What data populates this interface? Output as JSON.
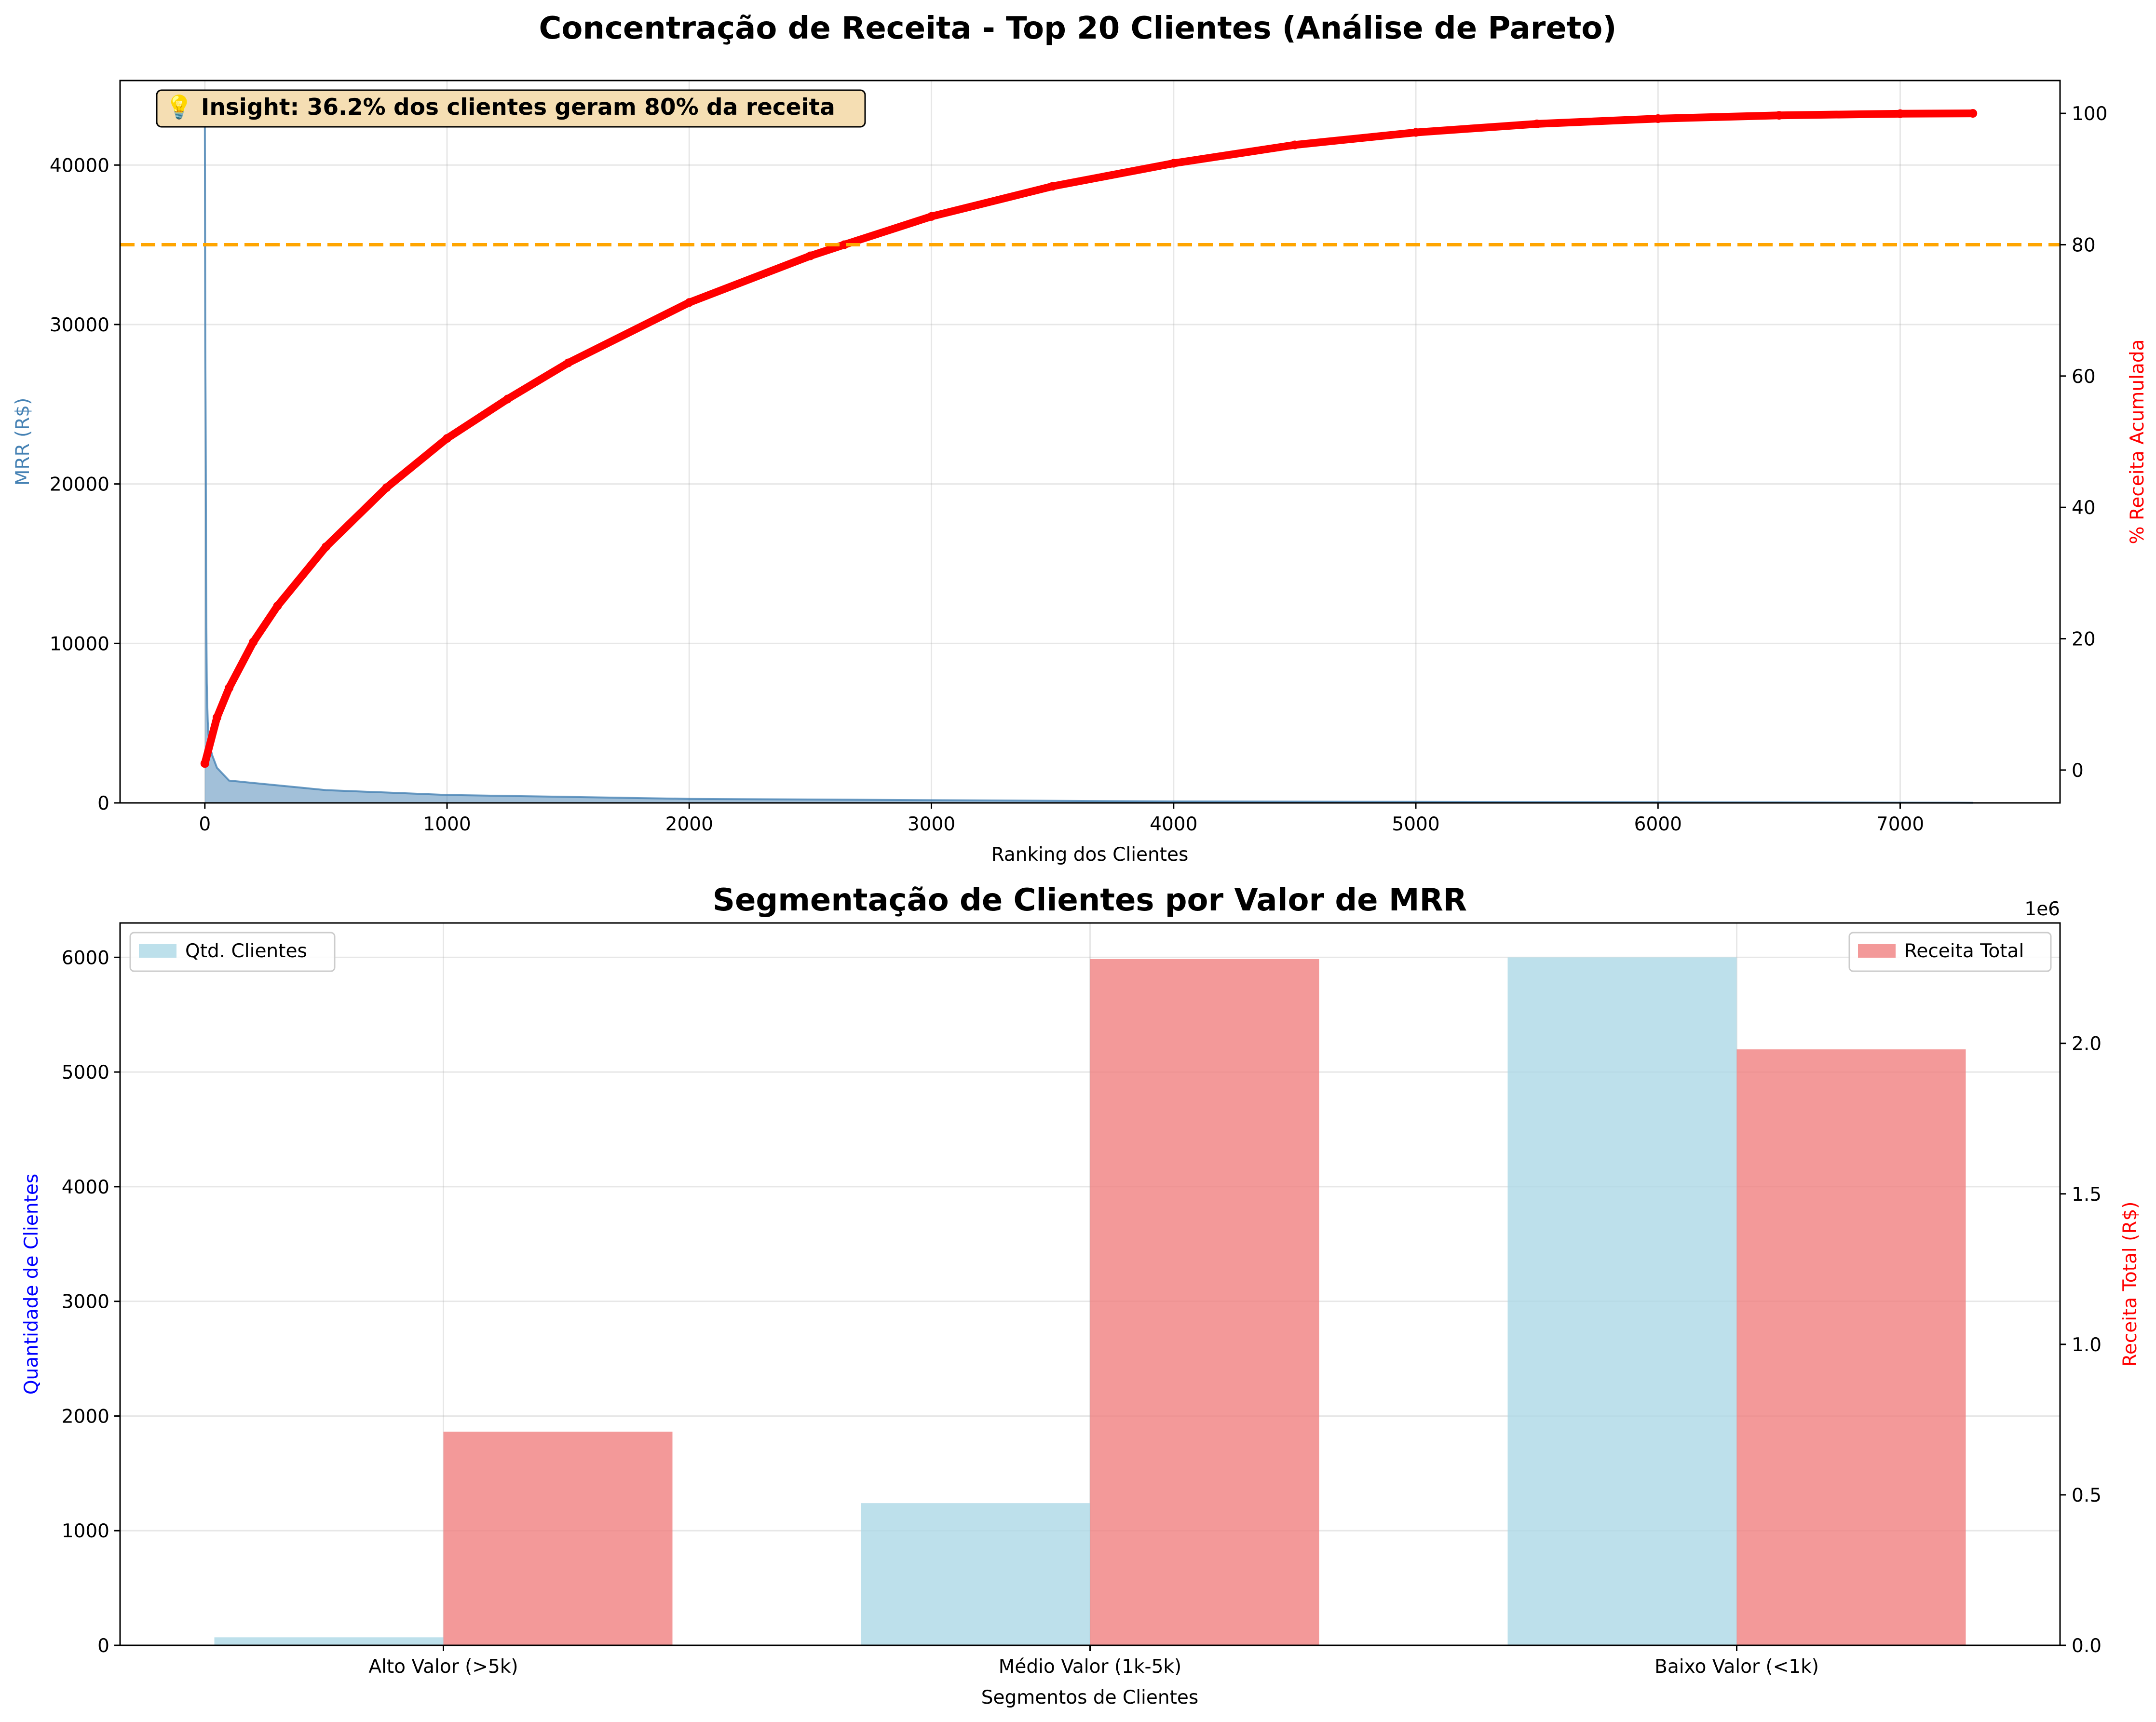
{
  "suptitle": "Concentração de Receita - Top 20 Clientes (Análise de Pareto)",
  "chart_data": [
    {
      "type": "line",
      "title": "",
      "xlabel": "Ranking dos Clientes",
      "ylabel": "MRR (R$)",
      "y2label": "% Receita Acumulada",
      "xlim": [
        -350,
        7660
      ],
      "ylim": [
        0,
        45300
      ],
      "y2lim": [
        -5,
        105
      ],
      "xticks": [
        0,
        1000,
        2000,
        3000,
        4000,
        5000,
        6000,
        7000
      ],
      "yticks": [
        0,
        10000,
        20000,
        30000,
        40000
      ],
      "y2ticks": [
        0,
        20,
        40,
        60,
        80,
        100
      ],
      "grid": true,
      "threshold_line": {
        "value": 80,
        "axis": "y2",
        "color": "#ffa500",
        "style": "dashed"
      },
      "annotation": "💡 Insight: 36.2% dos clientes geram 80% da receita",
      "series": [
        {
          "axis": "y",
          "color": "#4682b4",
          "x": [
            0,
            1,
            2,
            3,
            4,
            5,
            6,
            7,
            8,
            10,
            12,
            15,
            20,
            30,
            50,
            100,
            500,
            1000,
            2000,
            4000,
            7300
          ],
          "values": [
            43000,
            35500,
            28500,
            25200,
            21000,
            14500,
            12000,
            9500,
            7500,
            6200,
            5100,
            4300,
            3600,
            3000,
            2200,
            1400,
            800,
            500,
            250,
            90,
            10
          ]
        },
        {
          "axis": "y2",
          "color": "#ff0000",
          "x": [
            0,
            50,
            100,
            200,
            300,
            500,
            750,
            1000,
            1250,
            1500,
            2000,
            2500,
            2640,
            3000,
            3500,
            4000,
            4500,
            5000,
            5500,
            6000,
            6500,
            7000,
            7300
          ],
          "values": [
            1.0,
            8.0,
            12.5,
            19.5,
            25.0,
            34.0,
            43.0,
            50.5,
            56.5,
            62.0,
            71.2,
            78.3,
            80.0,
            84.3,
            88.9,
            92.4,
            95.2,
            97.1,
            98.4,
            99.2,
            99.7,
            99.95,
            100
          ]
        }
      ]
    },
    {
      "type": "bar",
      "title": "Segmentação de Clientes por Valor de MRR",
      "xlabel": "Segmentos de Clientes",
      "ylabel": "Quantidade de Clientes",
      "y2label": "Receita Total (R$)",
      "y2_offset_label": "1e6",
      "categories": [
        "Alto Valor (>5k)",
        "Médio Valor (1k-5k)",
        "Baixo Valor (<1k)"
      ],
      "ylim": [
        0,
        6300
      ],
      "y2lim": [
        0,
        2.4
      ],
      "yticks": [
        0,
        1000,
        2000,
        3000,
        4000,
        5000,
        6000
      ],
      "y2ticks": [
        "0.0",
        "0.5",
        "1.0",
        "1.5",
        "2.0"
      ],
      "grid": true,
      "series": [
        {
          "name": "Qtd. Clientes",
          "axis": "y",
          "color": "#add8e6",
          "values": [
            70,
            1240,
            6000
          ]
        },
        {
          "name": "Receita Total",
          "axis": "y2",
          "color": "#f08080",
          "values": [
            0.71,
            2.28,
            1.98
          ]
        }
      ],
      "legend": [
        "top-left",
        "top-right"
      ]
    }
  ]
}
